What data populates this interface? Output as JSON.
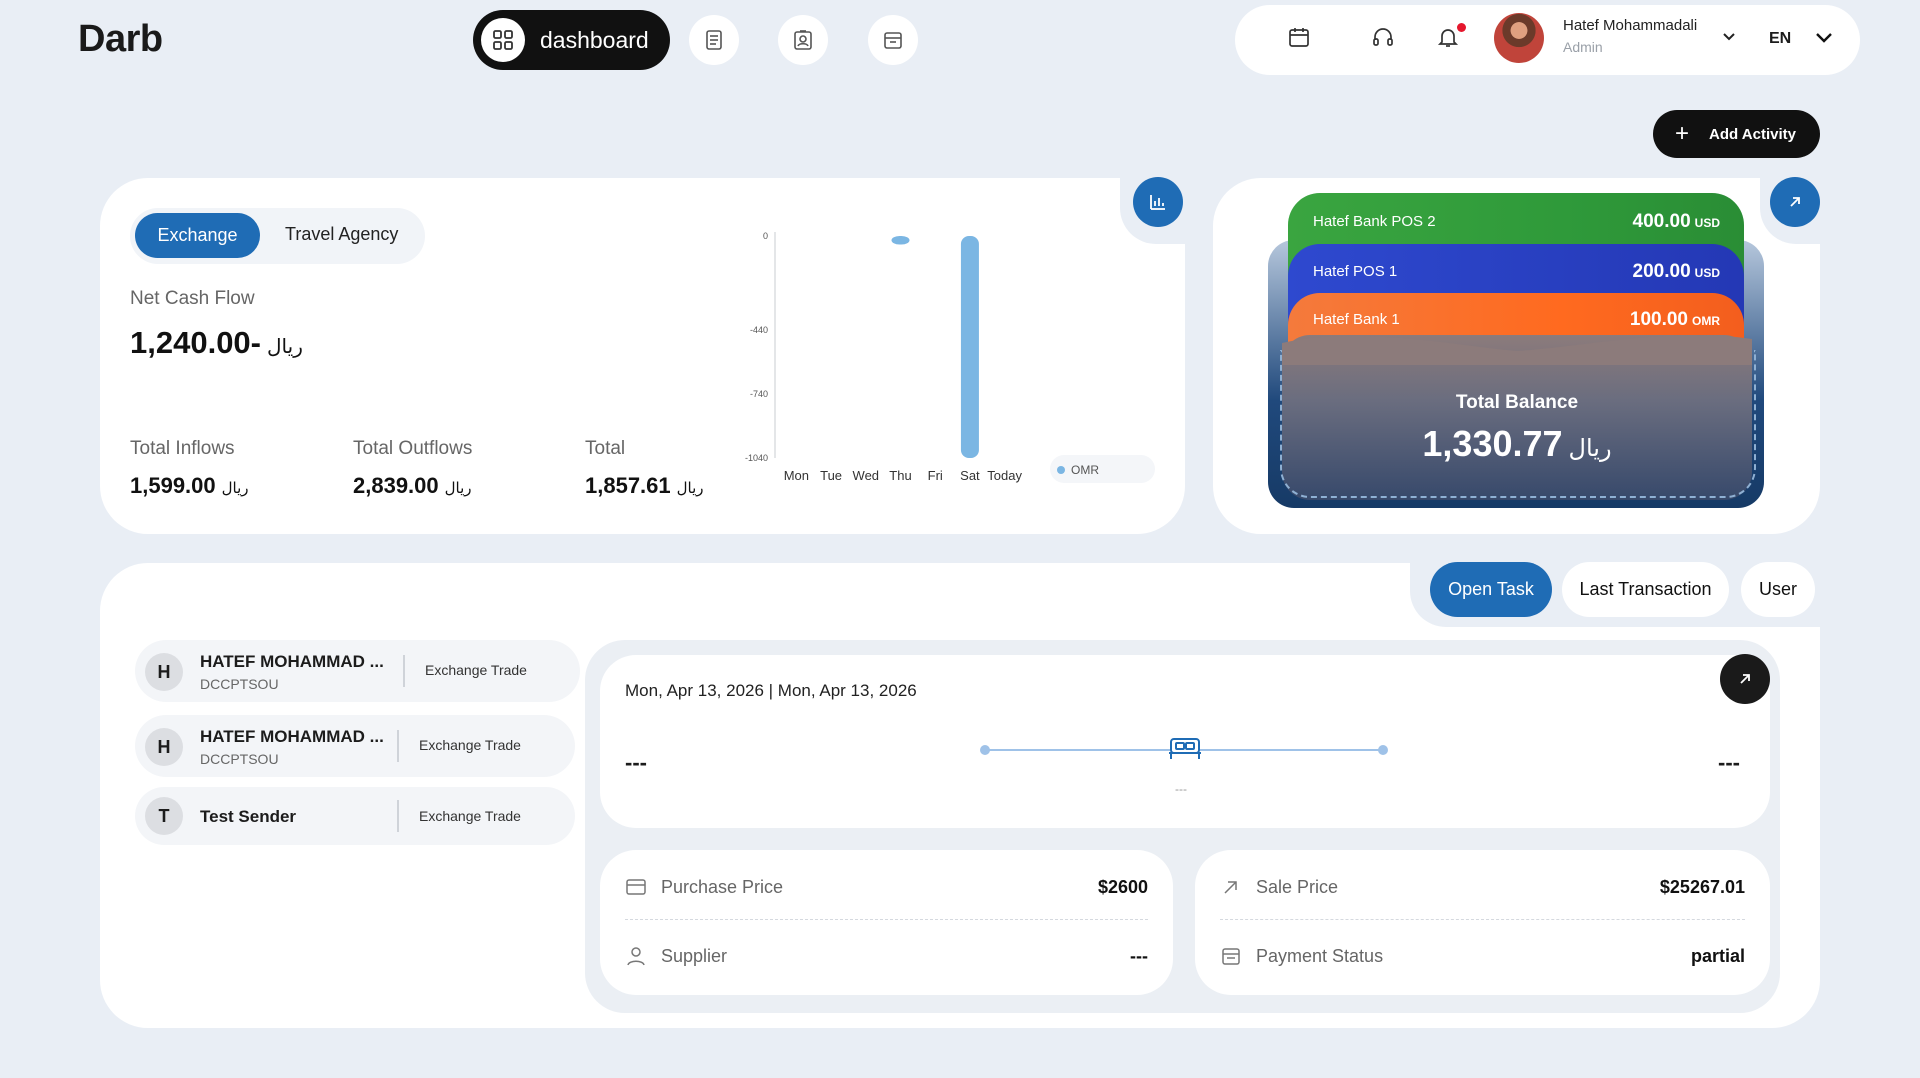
{
  "app": {
    "logo": "Darb"
  },
  "nav": {
    "active_label": "dashboard",
    "icons": [
      "dashboard-icon",
      "document-icon",
      "id-card-icon",
      "mailbox-icon"
    ]
  },
  "header": {
    "user_name": "Hatef Mohammadali",
    "user_role": "Admin",
    "language": "EN",
    "icons": [
      "calendar-icon",
      "headset-icon",
      "bell-icon",
      "chevron-down-icon"
    ]
  },
  "actions": {
    "add_activity": "Add Activity"
  },
  "cashflow": {
    "tabs": [
      "Exchange",
      "Travel Agency"
    ],
    "active_tab": "Exchange",
    "net_label": "Net Cash Flow",
    "net_value": "1,240.00-",
    "currency": "ریال",
    "inflows_label": "Total Inflows",
    "inflows_value": "1,599.00",
    "outflows_label": "Total Outflows",
    "outflows_value": "2,839.00",
    "total_label": "Total",
    "total_value": "1,857.61"
  },
  "chart_data": {
    "type": "bar",
    "categories": [
      "Mon",
      "Tue",
      "Wed",
      "Thu",
      "Fri",
      "Sat",
      "Today"
    ],
    "series": [
      {
        "name": "OMR",
        "values": [
          0,
          0,
          0,
          -40,
          0,
          -1040,
          0
        ]
      }
    ],
    "y_ticks": [
      "0",
      "-440",
      "-740",
      "-1040"
    ],
    "ylim": [
      -1040,
      0
    ],
    "grid": false,
    "legend": "bottom-right",
    "color": "#7bb6e3"
  },
  "wallet": {
    "accounts": [
      {
        "name": "Hatef Bank POS 2",
        "amount": "400.00",
        "currency": "USD",
        "color": "#3aa540"
      },
      {
        "name": "Hatef POS 1",
        "amount": "200.00",
        "currency": "USD",
        "color": "#2e49cf"
      },
      {
        "name": "Hatef Bank 1",
        "amount": "100.00",
        "currency": "OMR",
        "color": "#ff6a1f"
      }
    ],
    "total_label": "Total Balance",
    "total_value": "1,330.77",
    "currency": "ریال"
  },
  "tabs": [
    "Open Task",
    "Last Transaction",
    "User"
  ],
  "active_tab": "Open Task",
  "tasks": [
    {
      "initial": "H",
      "name": "HATEF MOHAMMAD ...",
      "sub": "DCCPTSOU",
      "type": "Exchange Trade"
    },
    {
      "initial": "H",
      "name": "HATEF MOHAMMAD ...",
      "sub": "DCCPTSOU",
      "type": "Exchange Trade"
    },
    {
      "initial": "T",
      "name": "Test Sender",
      "sub": "",
      "type": "Exchange Trade"
    }
  ],
  "detail": {
    "date_range": "Mon, Apr 13, 2026 | Mon, Apr 13, 2026",
    "from": "---",
    "to": "---",
    "timeline_label": "---",
    "purchase_price_label": "Purchase Price",
    "purchase_price": "$2600",
    "supplier_label": "Supplier",
    "supplier": "---",
    "sale_price_label": "Sale Price",
    "sale_price": "$25267.01",
    "payment_status_label": "Payment Status",
    "payment_status": "partial"
  }
}
